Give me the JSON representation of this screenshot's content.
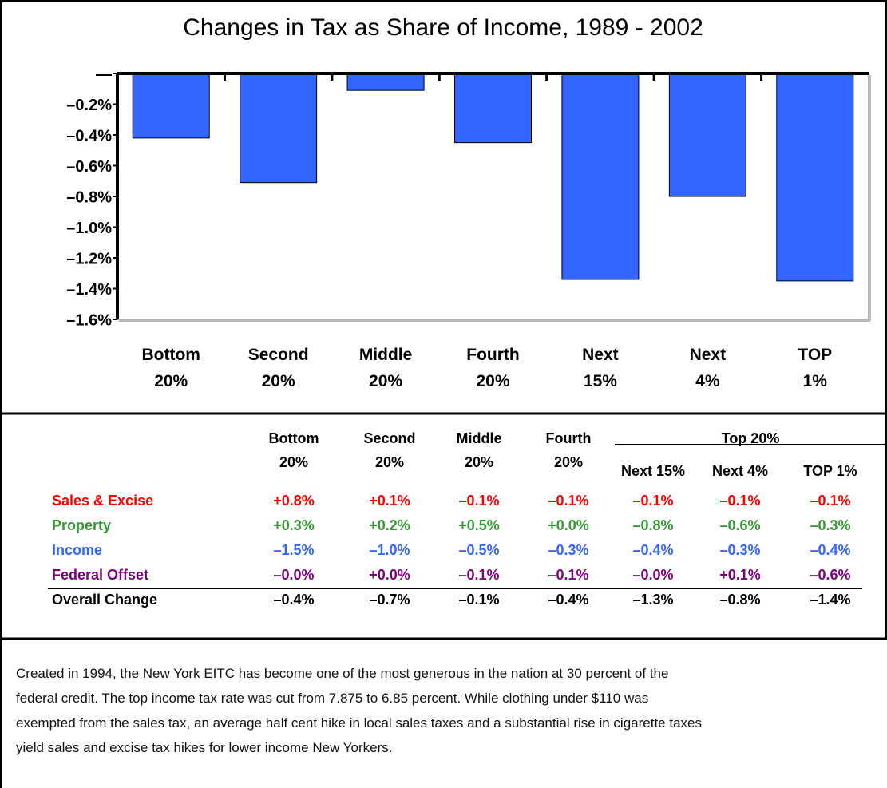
{
  "chart_data": {
    "type": "bar",
    "title": "Changes in Tax as Share of Income, 1989 - 2002",
    "categories": [
      "Bottom 20%",
      "Second 20%",
      "Middle 20%",
      "Fourth 20%",
      "Next 15%",
      "Next 4%",
      "TOP 1%"
    ],
    "values": [
      -0.42,
      -0.71,
      -0.11,
      -0.45,
      -1.34,
      -0.8,
      -1.35
    ],
    "color": "#3366ff",
    "ylim": [
      -1.6,
      0
    ],
    "yticks": [
      {
        "value": 0,
        "label": "—"
      },
      {
        "value": -0.2,
        "label": "–0.2%"
      },
      {
        "value": -0.4,
        "label": "–0.4%"
      },
      {
        "value": -0.6,
        "label": "–0.6%"
      },
      {
        "value": -0.8,
        "label": "–0.8%"
      },
      {
        "value": -1.0,
        "label": "–1.0%"
      },
      {
        "value": -1.2,
        "label": "–1.2%"
      },
      {
        "value": -1.4,
        "label": "–1.4%"
      },
      {
        "value": -1.6,
        "label": "–1.6%"
      }
    ]
  },
  "table": {
    "columns": [
      [
        "Bottom",
        "20%"
      ],
      [
        "Second",
        "20%"
      ],
      [
        "Middle",
        "20%"
      ],
      [
        "Fourth",
        "20%"
      ]
    ],
    "group": "Top 20%",
    "group_columns": [
      "Next 15%",
      "Next 4%",
      "TOP 1%"
    ],
    "rows": [
      {
        "label": "Sales & Excise",
        "color": "#ff0000",
        "values": [
          "+0.8%",
          "+0.1%",
          "–0.1%",
          "–0.1%",
          "–0.1%",
          "–0.1%",
          "–0.1%"
        ]
      },
      {
        "label": "Property",
        "color": "#339933",
        "values": [
          "+0.3%",
          "+0.2%",
          "+0.5%",
          "+0.0%",
          "–0.8%",
          "–0.6%",
          "–0.3%"
        ]
      },
      {
        "label": "Income",
        "color": "#3366ff",
        "values": [
          "–1.5%",
          "–1.0%",
          "–0.5%",
          "–0.3%",
          "–0.4%",
          "–0.3%",
          "–0.4%"
        ]
      },
      {
        "label": "Federal Offset",
        "color": "#800080",
        "values": [
          "–0.0%",
          "+0.0%",
          "–0.1%",
          "–0.1%",
          "–0.0%",
          "+0.1%",
          "–0.6%"
        ]
      },
      {
        "label": "Overall Change",
        "color": "#000000",
        "values": [
          "–0.4%",
          "–0.7%",
          "–0.1%",
          "–0.4%",
          "–1.3%",
          "–0.8%",
          "–1.4%"
        ]
      }
    ]
  },
  "note": "Created in 1994, the New York EITC has become one of the most generous in the nation at 30 percent of the federal credit. The top income tax rate was cut from 7.875 to 6.85 percent.  While clothing under $110 was exempted from the sales tax, an average half cent hike in local sales taxes and a substantial rise in cigarette taxes yield sales and excise tax hikes for lower income New Yorkers."
}
